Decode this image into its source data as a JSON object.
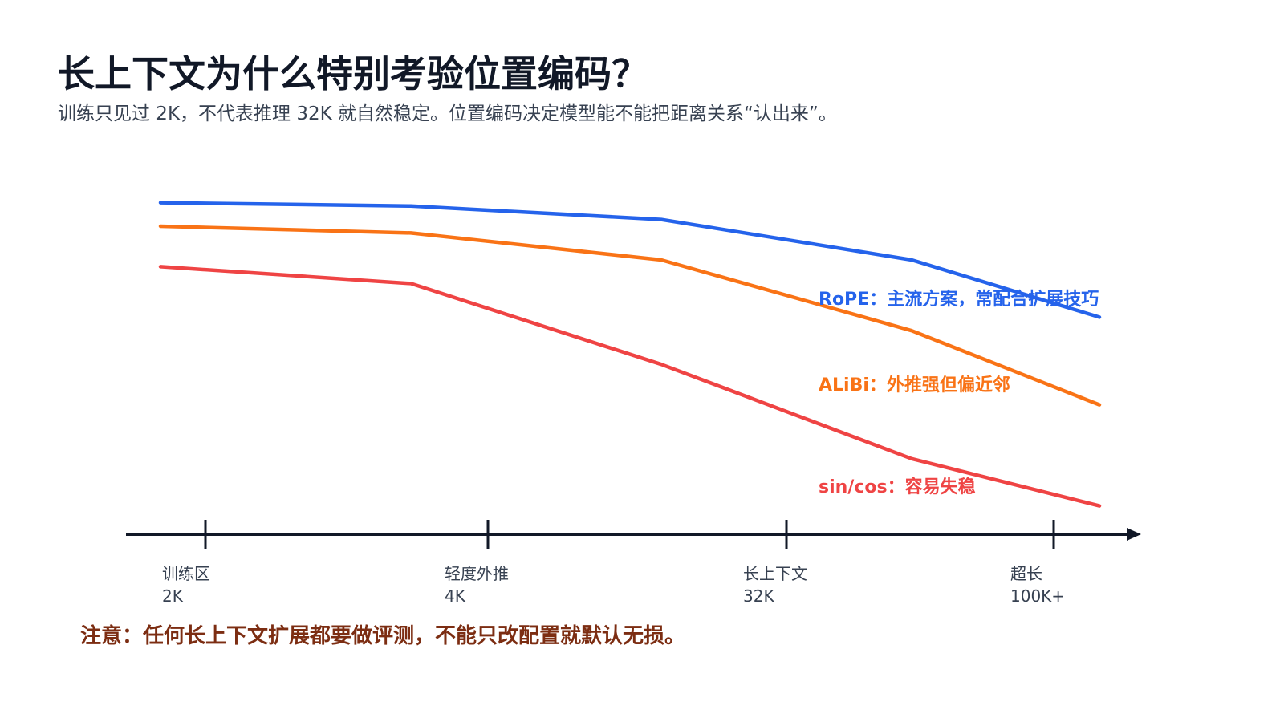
{
  "slide": {
    "title": "长上下文为什么特别考验位置编码？",
    "subtitle": "训练只见过 2K，不代表推理 32K 就自然稳定。位置编码决定模型能不能把距离关系“认出来”。",
    "note": "注意：任何长上下文扩展都要做评测，不能只改配置就默认无损。"
  },
  "chart_data": {
    "type": "line",
    "title": "",
    "xlabel": "",
    "ylabel": "",
    "grid": false,
    "legend": "inline-labels",
    "ylim": [
      0,
      100
    ],
    "x": [
      0,
      1,
      2,
      3,
      4
    ],
    "x_ticks": [
      {
        "pos": 0,
        "label": "训练区",
        "value": "2K"
      },
      {
        "pos": 1.15,
        "label": "轻度外推",
        "value": "4K"
      },
      {
        "pos": 2.4,
        "label": "长上下文",
        "value": "32K"
      },
      {
        "pos": 3.55,
        "label": "超长",
        "value": "100K+"
      }
    ],
    "series": [
      {
        "name": "RoPE：主流方案，常配合扩展技巧",
        "color": "#2563eb",
        "x": [
          0,
          1,
          2,
          3,
          3.75
        ],
        "values": [
          97,
          96,
          92,
          80,
          63
        ]
      },
      {
        "name": "ALiBi：外推强但偏近邻",
        "color": "#f97316",
        "x": [
          0,
          1,
          2,
          3,
          3.75
        ],
        "values": [
          90,
          88,
          80,
          59,
          37
        ]
      },
      {
        "name": "sin/cos：容易失稳",
        "color": "#ef4444",
        "x": [
          0,
          1,
          2,
          3,
          3.75
        ],
        "values": [
          78,
          73,
          49,
          21,
          7
        ]
      }
    ]
  }
}
